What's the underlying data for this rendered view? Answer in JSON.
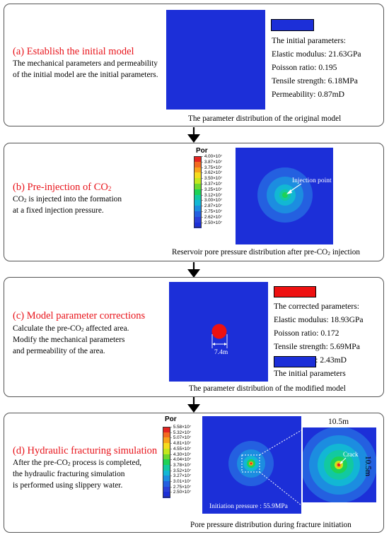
{
  "panel_a": {
    "title": "(a) Establish the initial model",
    "desc": [
      "The mechanical parameters and permeability",
      "of the initial model are the initial parameters."
    ],
    "params": [
      "The initial parameters:",
      "Elastic modulus: 21.63GPa",
      "Poisson ratio: 0.195",
      "Tensile strength: 6.18MPa",
      "Permeability: 0.87mD"
    ],
    "caption": "The parameter distribution of the original model"
  },
  "panel_b": {
    "title_main": "(b) Pre-injection of CO",
    "title_sub": "2",
    "desc1_main": "CO",
    "desc1_sub": "2",
    "desc1_rest": " is injected into the formation",
    "desc2": "at a fixed injection pressure.",
    "colorbar_title": "Por",
    "colorbar_labels": [
      "4.00×10⁷",
      "3.87×10⁷",
      "3.75×10⁷",
      "3.62×10⁷",
      "3.50×10⁷",
      "3.37×10⁷",
      "3.25×10⁷",
      "3.12×10⁷",
      "3.00×10⁷",
      "2.87×10⁷",
      "2.75×10⁷",
      "2.62×10⁷",
      "2.50×10⁷"
    ],
    "annotation": "Injection point",
    "caption_main": "Reservoir pore pressure distribution after pre-CO",
    "caption_sub": "2",
    "caption_rest": " injection"
  },
  "panel_c": {
    "title": "(c) Model parameter corrections",
    "desc1_main": "Calculate the pre-CO",
    "desc1_sub": "2",
    "desc1_rest": " affected area.",
    "desc2": "Modify the mechanical parameters",
    "desc3": "and permeability of the area.",
    "dimension": "7.4m",
    "params": [
      "The corrected parameters:",
      "Elastic modulus: 18.93GPa",
      "Poisson ratio: 0.172",
      "Tensile strength: 5.69MPa",
      "Permeability: 2.43mD"
    ],
    "legend_initial": "The initial parameters",
    "caption": "The parameter distribution of the modified model"
  },
  "panel_d": {
    "title": "(d) Hydraulic fracturing simulation",
    "desc1_main": "After the pre-CO",
    "desc1_sub": "2",
    "desc1_rest": " process is completed,",
    "desc2": "the hydraulic fracturing simulation",
    "desc3": "is performed using slippery water.",
    "colorbar_title": "Por",
    "colorbar_labels": [
      "5.58×10⁷",
      "5.32×10⁷",
      "5.07×10⁷",
      "4.81×10⁷",
      "4.55×10⁷",
      "4.30×10⁷",
      "4.04×10⁷",
      "3.78×10⁷",
      "3.52×10⁷",
      "3.27×10⁷",
      "3.01×10⁷",
      "2.75×10⁷",
      "2.50×10⁷"
    ],
    "initiation": "Initiation pressure : 55.9MPa",
    "zoom_width": "10.5m",
    "zoom_height": "10.5m",
    "crack": "Crack",
    "caption": "Pore pressure distribution during fracture initiation"
  },
  "colors": {
    "title_red": "#e8141b",
    "model_blue": "#1c2fd8",
    "corrected_red": "#ee1111",
    "colorbar": [
      "#e52421",
      "#f26a21",
      "#f7a21b",
      "#f5dc1f",
      "#c4e71d",
      "#6fd82e",
      "#1ed255",
      "#12c9a0",
      "#12b7d4",
      "#1c8de0",
      "#2460e0",
      "#2a3fd8",
      "#1c2fd8"
    ]
  }
}
